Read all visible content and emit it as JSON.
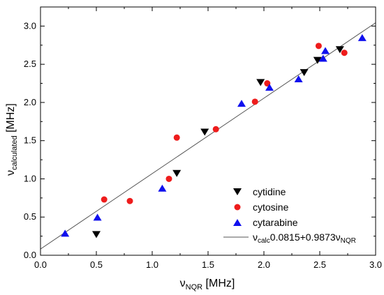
{
  "chart_data": {
    "type": "scatter",
    "xlabel": "ν",
    "xlabel_sub": "NQR",
    "xlabel_unit": " [MHz]",
    "ylabel": "ν",
    "ylabel_sub": "calculated",
    "ylabel_unit": " [MHz]",
    "xlim": [
      0.0,
      3.0
    ],
    "ylim": [
      0.0,
      3.25
    ],
    "xticks": [
      "0.0",
      "0.5",
      "1.0",
      "1.5",
      "2.0",
      "2.5",
      "3.0"
    ],
    "yticks": [
      "0.0",
      "0.5",
      "1.0",
      "1.5",
      "2.0",
      "2.5",
      "3.0"
    ],
    "legend_position": "bottom-right",
    "series": [
      {
        "name": "cytidine",
        "marker": "triangle-down",
        "color": "#000000",
        "points": [
          [
            0.5,
            0.28
          ],
          [
            1.22,
            1.08
          ],
          [
            1.47,
            1.62
          ],
          [
            1.97,
            2.27
          ],
          [
            2.36,
            2.4
          ],
          [
            2.48,
            2.56
          ],
          [
            2.68,
            2.7
          ]
        ]
      },
      {
        "name": "cytosine",
        "marker": "circle",
        "color": "#ee1c1c",
        "points": [
          [
            0.57,
            0.73
          ],
          [
            0.8,
            0.71
          ],
          [
            1.15,
            1.0
          ],
          [
            1.22,
            1.54
          ],
          [
            1.57,
            1.65
          ],
          [
            1.92,
            2.01
          ],
          [
            2.03,
            2.25
          ],
          [
            2.49,
            2.74
          ],
          [
            2.72,
            2.65
          ]
        ]
      },
      {
        "name": "cytarabine",
        "marker": "triangle-up",
        "color": "#1010ee",
        "points": [
          [
            0.22,
            0.28
          ],
          [
            0.51,
            0.49
          ],
          [
            1.09,
            0.87
          ],
          [
            1.8,
            1.98
          ],
          [
            2.05,
            2.19
          ],
          [
            2.31,
            2.3
          ],
          [
            2.53,
            2.57
          ],
          [
            2.55,
            2.67
          ],
          [
            2.88,
            2.84
          ]
        ]
      }
    ],
    "fit": {
      "label_main": "ν",
      "label_sub1": "calc",
      "label_mid": "0.0815+0.9873ν",
      "label_sub2": "NQR",
      "intercept": 0.0815,
      "slope": 0.9873,
      "color": "#555555"
    }
  }
}
